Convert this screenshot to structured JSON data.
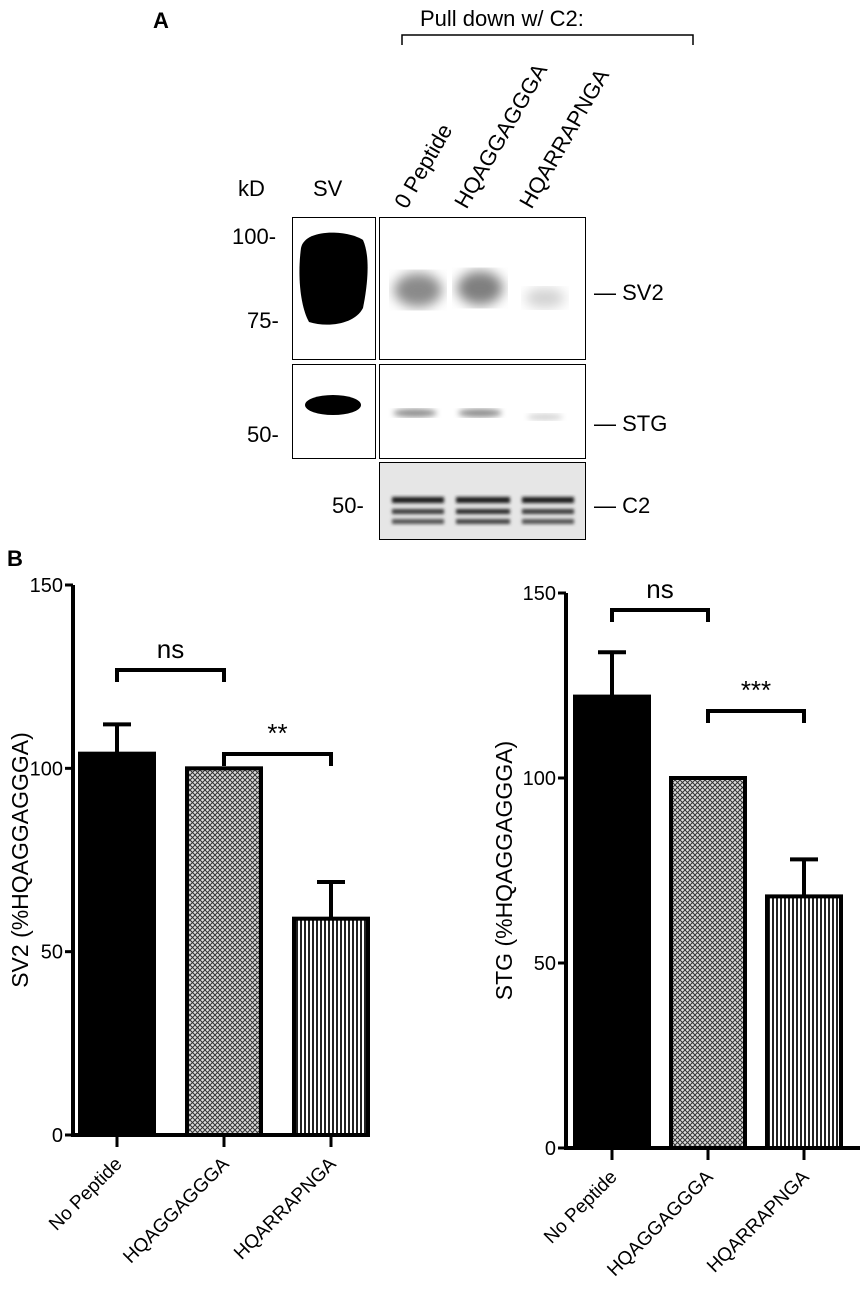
{
  "panel_a": {
    "letter": "A",
    "bracket_label": "Pull down w/ C2:",
    "kd_label": "kD",
    "sv_lane": "SV",
    "lanes": [
      "0 Peptide",
      "HQAGGAGGGA",
      "HQARRAPNGA"
    ],
    "markers": [
      "100-",
      "75-",
      "50-",
      "50-"
    ],
    "bands": [
      "— SV2",
      "— STG",
      "— C2"
    ]
  },
  "panel_b": {
    "letter": "B"
  },
  "chart_data": [
    {
      "type": "bar",
      "categories": [
        "No Peptide",
        "HQAGGAGGGA",
        "HQARRAPNGA"
      ],
      "values": [
        104,
        100,
        59
      ],
      "errors": [
        8,
        0,
        10
      ],
      "ylabel": "SV2 (%HQAGGAGGGA)",
      "ylim": [
        0,
        150
      ],
      "yticks": [
        "0",
        "50",
        "100",
        "150"
      ],
      "fills": [
        "solid",
        "crosshatch",
        "vertical-lines"
      ],
      "significance": [
        {
          "from": 0,
          "to": 1,
          "label": "ns"
        },
        {
          "from": 1,
          "to": 2,
          "label": "**"
        }
      ]
    },
    {
      "type": "bar",
      "categories": [
        "No Peptide",
        "HQAGGAGGGA",
        "HQARRAPNGA"
      ],
      "values": [
        122,
        100,
        68
      ],
      "errors": [
        12,
        0,
        10
      ],
      "ylabel": "STG (%HQAGGAGGGA)",
      "ylim": [
        0,
        150
      ],
      "yticks": [
        "0",
        "50",
        "100",
        "150"
      ],
      "fills": [
        "solid",
        "crosshatch",
        "vertical-lines"
      ],
      "significance": [
        {
          "from": 0,
          "to": 1,
          "label": "ns"
        },
        {
          "from": 1,
          "to": 2,
          "label": "***"
        }
      ]
    }
  ]
}
